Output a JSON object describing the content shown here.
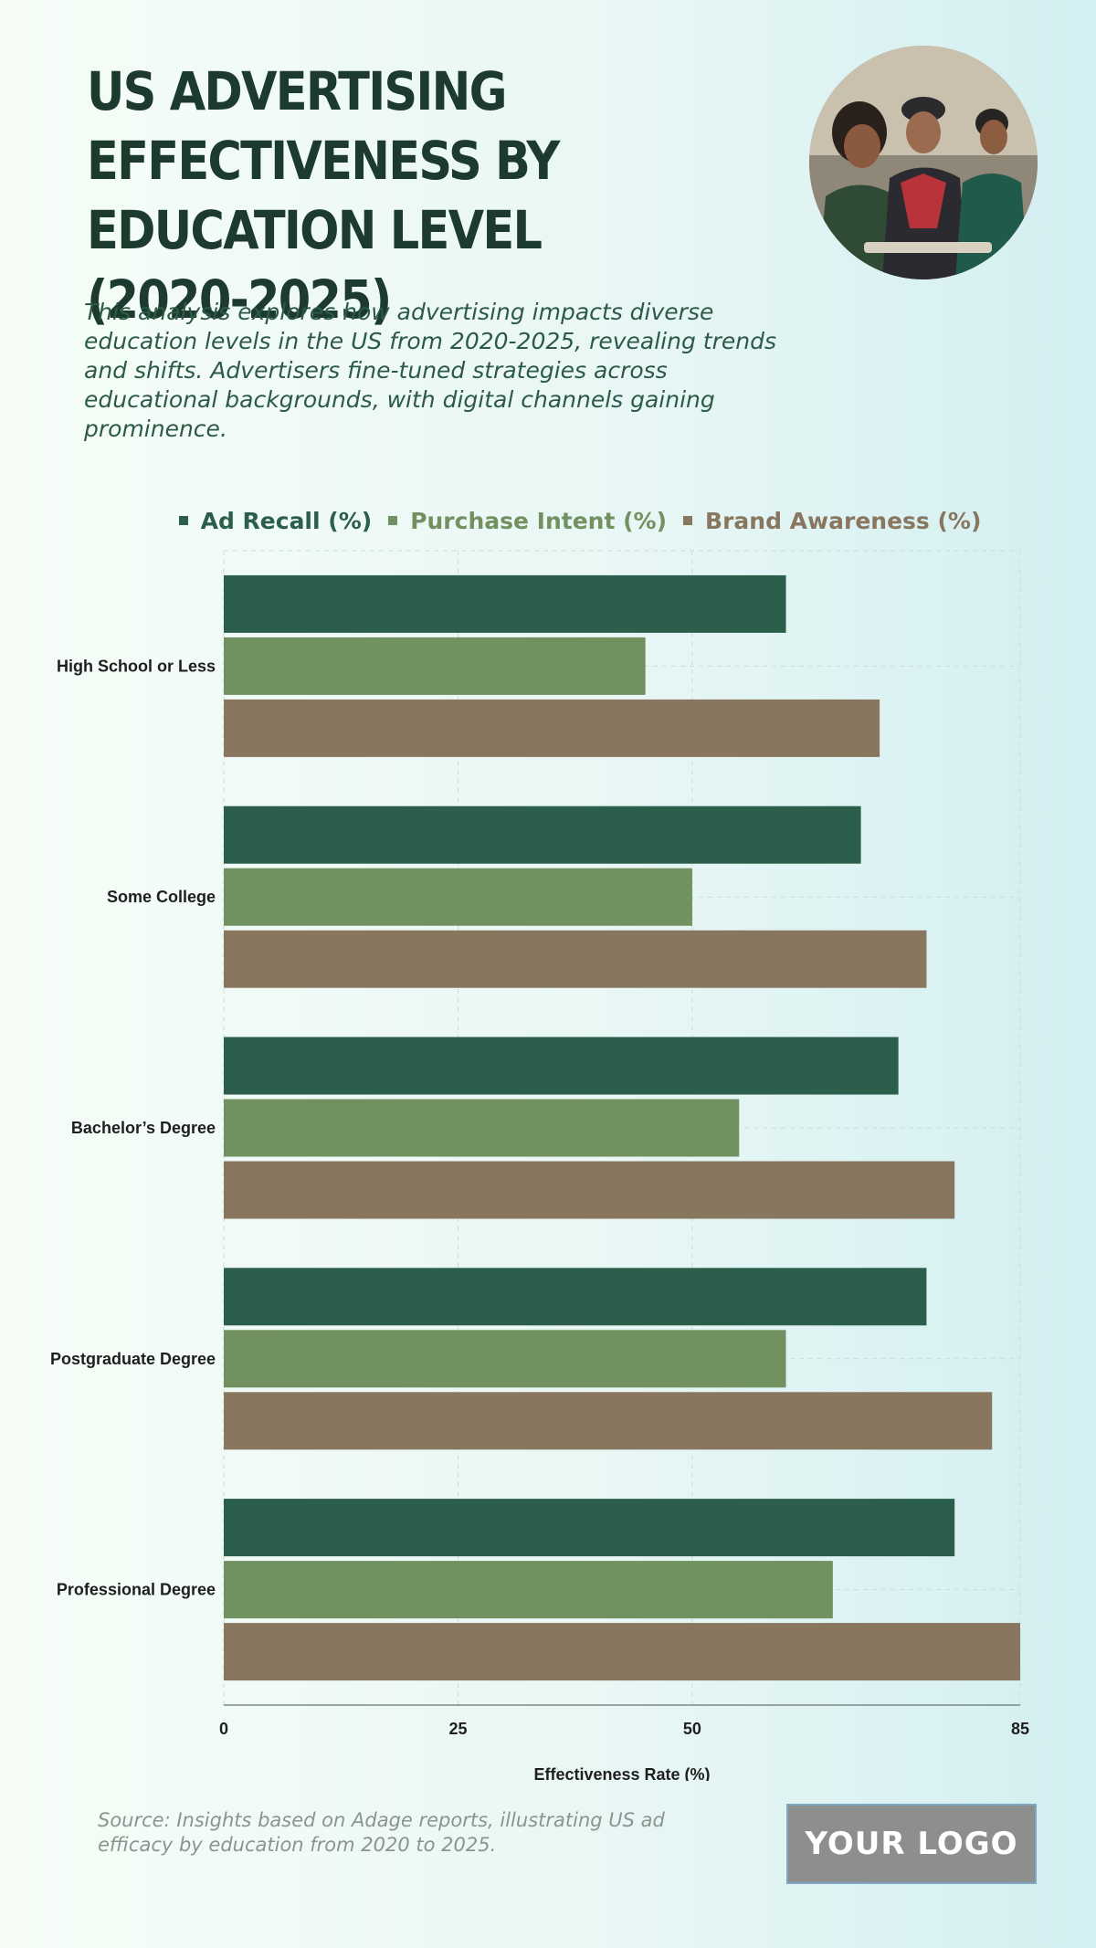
{
  "header": {
    "title": "US ADVERTISING EFFECTIVENESS BY EDUCATION LEVEL (2020-2025)",
    "subtitle": "This analysis explores how advertising impacts diverse education levels in the US from 2020-2025, revealing trends and shifts. Advertisers fine-tuned strategies across educational backgrounds, with digital channels gaining prominence."
  },
  "footer": {
    "source": "Source: Insights based on Adage reports, illustrating US ad efficacy by education from 2020 to 2025.",
    "logo": "YOUR LOGO"
  },
  "colors": {
    "title": "#1c3b2e",
    "ad_recall": "#2c5f4b",
    "purchase_intent": "#729160",
    "brand_awareness": "#88765f"
  },
  "chart_data": {
    "type": "bar",
    "orientation": "horizontal",
    "categories": [
      "High School or Less",
      "Some College",
      "Bachelor’s Degree",
      "Postgraduate Degree",
      "Professional Degree"
    ],
    "series": [
      {
        "name": "Ad Recall (%)",
        "color": "#2c5f4b",
        "values": [
          60,
          68,
          72,
          75,
          78
        ]
      },
      {
        "name": "Purchase Intent (%)",
        "color": "#729160",
        "values": [
          45,
          50,
          55,
          60,
          65
        ]
      },
      {
        "name": "Brand Awareness (%)",
        "color": "#88765f",
        "values": [
          70,
          75,
          78,
          82,
          85
        ]
      }
    ],
    "xlabel": "Effectiveness Rate (%)",
    "ylabel": "",
    "xlim": [
      0,
      85
    ],
    "xticks": [
      0,
      25,
      50,
      85
    ],
    "grid": true,
    "legend_position": "top"
  }
}
